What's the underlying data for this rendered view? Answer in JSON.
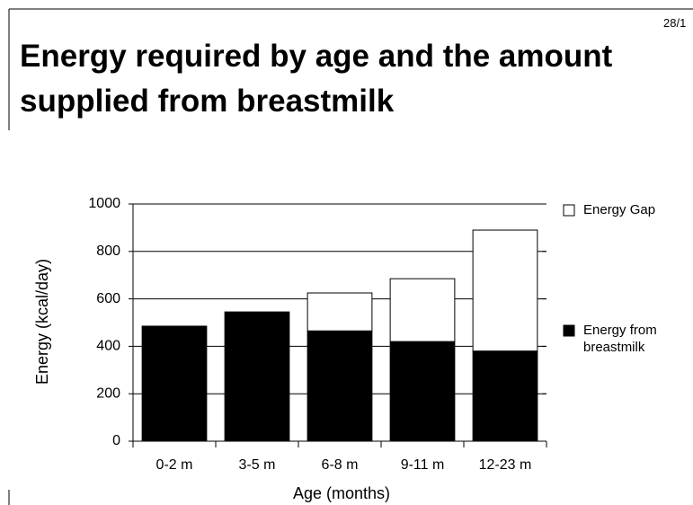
{
  "page_number": "28/1",
  "chart_data": {
    "type": "stacked_bar",
    "title": "Energy required by age and the amount supplied from breastmilk",
    "x_label": "Age (months)",
    "y_label": "Energy (kcal/day)",
    "categories": [
      "0-2 m",
      "3-5 m",
      "6-8 m",
      "9-11 m",
      "12-23 m"
    ],
    "series": [
      {
        "name": "Energy from breastmilk",
        "color": "#000000",
        "values": [
          485,
          545,
          465,
          420,
          380
        ]
      },
      {
        "name": "Energy Gap",
        "color": "#ffffff",
        "values": [
          0,
          0,
          160,
          265,
          510
        ]
      }
    ],
    "ylim": [
      0,
      1000
    ],
    "yticks": [
      0,
      200,
      400,
      600,
      800,
      1000
    ],
    "grid": true,
    "legend": "right"
  }
}
